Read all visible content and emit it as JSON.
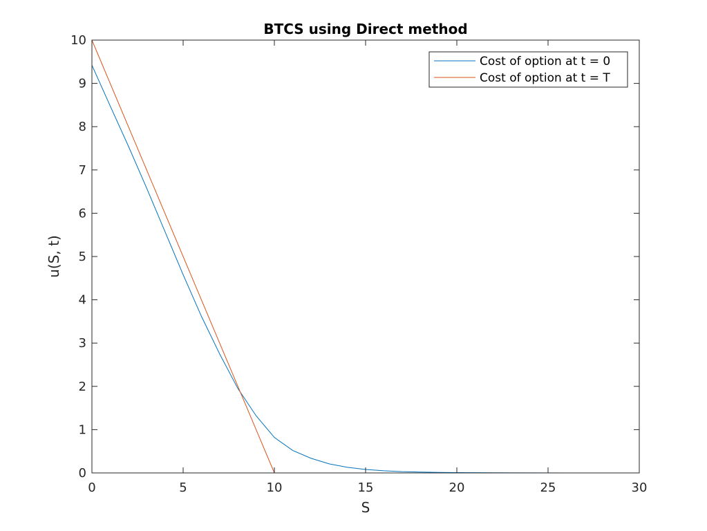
{
  "chart_data": {
    "type": "line",
    "title": "BTCS using Direct method",
    "xlabel": "S",
    "ylabel": "u(S, t)",
    "xlim": [
      0,
      30
    ],
    "ylim": [
      0,
      10
    ],
    "xticks": [
      "0",
      "5",
      "10",
      "15",
      "20",
      "25",
      "30"
    ],
    "yticks": [
      "0",
      "1",
      "2",
      "3",
      "4",
      "5",
      "6",
      "7",
      "8",
      "9",
      "10"
    ],
    "grid": false,
    "legend_position": "top-right",
    "series": [
      {
        "name": "Cost of option at t = 0",
        "color": "#0072BD",
        "x": [
          0,
          1,
          2,
          3,
          4,
          5,
          6,
          7,
          8,
          9,
          10,
          11,
          12,
          13,
          14,
          15,
          16,
          17,
          18,
          19,
          20,
          22,
          24,
          26,
          27.2
        ],
        "y": [
          9.42,
          8.48,
          7.55,
          6.58,
          5.58,
          4.58,
          3.62,
          2.75,
          1.95,
          1.32,
          0.82,
          0.52,
          0.34,
          0.21,
          0.13,
          0.08,
          0.05,
          0.03,
          0.02,
          0.012,
          0.008,
          0.004,
          0.002,
          0.001,
          0.0
        ]
      },
      {
        "name": "Cost of option at t = T",
        "color": "#D95319",
        "x": [
          0,
          10,
          27.2
        ],
        "y": [
          10,
          0,
          0
        ]
      }
    ]
  }
}
